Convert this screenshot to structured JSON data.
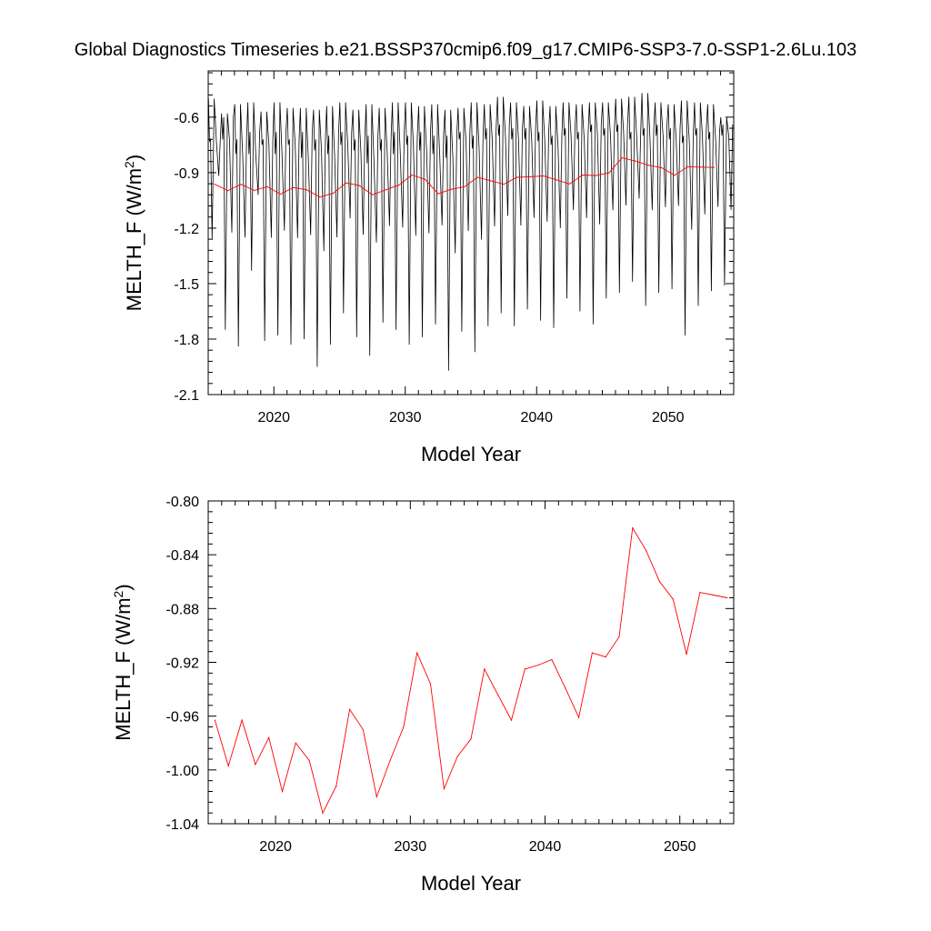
{
  "title": "Global Diagnostics Timeseries b.e21.BSSP370cmip6.f09_g17.CMIP6-SSP3-7.0-SSP1-2.6Lu.103",
  "colors": {
    "monthly": "#000000",
    "annual": "#ff0000",
    "frame": "#000000"
  },
  "chart_data": [
    {
      "type": "line",
      "xlabel": "Model Year",
      "ylabel": "MELTH_F (W/m",
      "ylabel_superscript": "2",
      "ylabel_suffix": ")",
      "xlim": [
        2015,
        2055
      ],
      "ylim": [
        -2.1,
        -0.35
      ],
      "xticks": [
        2020,
        2030,
        2040,
        2050
      ],
      "xtick_labels": [
        "2020",
        "2030",
        "2040",
        "2050"
      ],
      "yticks": [
        -2.1,
        -1.8,
        -1.5,
        -1.2,
        -0.9,
        -0.6
      ],
      "ytick_labels": [
        "-2.1",
        "-1.8",
        "-1.5",
        "-1.2",
        "-0.9",
        "-0.6"
      ],
      "grid": false,
      "monthly_cycle": {
        "years": [
          2015,
          2016,
          2017,
          2018,
          2019,
          2020,
          2021,
          2022,
          2023,
          2024,
          2025,
          2026,
          2027,
          2028,
          2029,
          2030,
          2031,
          2032,
          2033,
          2034,
          2035,
          2036,
          2037,
          2038,
          2039,
          2040,
          2041,
          2042,
          2043,
          2044,
          2045,
          2046,
          2047,
          2048,
          2049,
          2050,
          2051,
          2052,
          2053,
          2054
        ],
        "summer_low": [
          -1.26,
          -1.75,
          -1.84,
          -1.43,
          -1.81,
          -1.78,
          -1.83,
          -1.8,
          -1.95,
          -1.83,
          -1.66,
          -1.79,
          -1.89,
          -1.71,
          -1.75,
          -1.83,
          -1.79,
          -1.72,
          -1.97,
          -1.76,
          -1.87,
          -1.73,
          -1.66,
          -1.73,
          -1.64,
          -1.7,
          -1.74,
          -1.58,
          -1.65,
          -1.72,
          -1.58,
          -1.55,
          -1.49,
          -1.62,
          -1.55,
          -1.53,
          -1.78,
          -1.62,
          -1.54,
          -1.51
        ],
        "winter_high": [
          -0.5,
          -0.58,
          -0.53,
          -0.52,
          -0.57,
          -0.52,
          -0.55,
          -0.55,
          -0.56,
          -0.54,
          -0.52,
          -0.56,
          -0.53,
          -0.55,
          -0.52,
          -0.52,
          -0.54,
          -0.53,
          -0.56,
          -0.55,
          -0.52,
          -0.53,
          -0.49,
          -0.52,
          -0.54,
          -0.51,
          -0.54,
          -0.52,
          -0.53,
          -0.52,
          -0.52,
          -0.5,
          -0.49,
          -0.47,
          -0.52,
          -0.53,
          -0.51,
          -0.52,
          -0.53,
          -0.6
        ],
        "secondary_low": [
          -0.73,
          -0.72,
          -0.8,
          -0.8,
          -0.75,
          -0.8,
          -0.75,
          -0.82,
          -0.78,
          -0.8,
          -0.75,
          -0.78,
          -0.85,
          -0.78,
          -0.8,
          -0.75,
          -0.78,
          -0.8,
          -0.82,
          -0.72,
          -0.77,
          -0.72,
          -0.7,
          -0.72,
          -0.72,
          -0.73,
          -0.75,
          -0.7,
          -0.72,
          -0.68,
          -0.7,
          -0.68,
          -0.72,
          -0.7,
          -0.7,
          -0.72,
          -0.74,
          -0.7,
          -0.72,
          -0.7
        ],
        "secondary_high": [
          -0.72,
          -0.6,
          -0.72,
          -0.68,
          -0.72,
          -0.68,
          -0.72,
          -0.68,
          -0.72,
          -0.7,
          -0.68,
          -0.72,
          -0.7,
          -0.72,
          -0.68,
          -0.7,
          -0.68,
          -0.7,
          -0.7,
          -0.68,
          -0.7,
          -0.66,
          -0.64,
          -0.66,
          -0.66,
          -0.68,
          -0.7,
          -0.66,
          -0.68,
          -0.64,
          -0.66,
          -0.64,
          -0.68,
          -0.66,
          -0.64,
          -0.66,
          -0.7,
          -0.66,
          -0.68,
          -0.64
        ]
      },
      "series": [
        {
          "name": "",
          "style": "annual",
          "x": "annual.x",
          "y": "annual.y"
        }
      ]
    },
    {
      "type": "line",
      "xlabel": "Model Year",
      "ylabel": "MELTH_F (W/m",
      "ylabel_superscript": "2",
      "ylabel_suffix": ")",
      "xlim": [
        2015,
        2054
      ],
      "ylim": [
        -1.04,
        -0.8
      ],
      "xticks": [
        2020,
        2030,
        2040,
        2050
      ],
      "xtick_labels": [
        "2020",
        "2030",
        "2040",
        "2050"
      ],
      "yticks": [
        -1.04,
        -1.0,
        -0.96,
        -0.92,
        -0.88,
        -0.84,
        -0.8
      ],
      "ytick_labels": [
        "-1.04",
        "-1.00",
        "-0.96",
        "-0.92",
        "-0.88",
        "-0.84",
        "-0.80"
      ],
      "grid": false,
      "series": [
        {
          "name": "",
          "style": "annual"
        }
      ]
    }
  ],
  "annual": {
    "x": [
      2015.5,
      2016.5,
      2017.5,
      2018.5,
      2019.5,
      2020.5,
      2021.5,
      2022.5,
      2023.5,
      2024.5,
      2025.5,
      2026.5,
      2027.5,
      2028.5,
      2029.5,
      2030.5,
      2031.5,
      2032.5,
      2033.5,
      2034.5,
      2035.5,
      2036.5,
      2037.5,
      2038.5,
      2039.5,
      2040.5,
      2041.5,
      2042.5,
      2043.5,
      2044.5,
      2045.5,
      2046.5,
      2047.5,
      2048.5,
      2049.5,
      2050.5,
      2051.5,
      2052.5,
      2053.5
    ],
    "y": [
      -0.963,
      -0.997,
      -0.963,
      -0.996,
      -0.976,
      -1.016,
      -0.98,
      -0.993,
      -1.032,
      -1.012,
      -0.955,
      -0.97,
      -1.02,
      -0.993,
      -0.968,
      -0.913,
      -0.936,
      -1.014,
      -0.99,
      -0.977,
      -0.925,
      -0.944,
      -0.963,
      -0.925,
      -0.922,
      -0.918,
      -0.939,
      -0.961,
      -0.913,
      -0.916,
      -0.901,
      -0.82,
      -0.837,
      -0.86,
      -0.873,
      -0.914,
      -0.868,
      -0.87,
      -0.872
    ]
  }
}
